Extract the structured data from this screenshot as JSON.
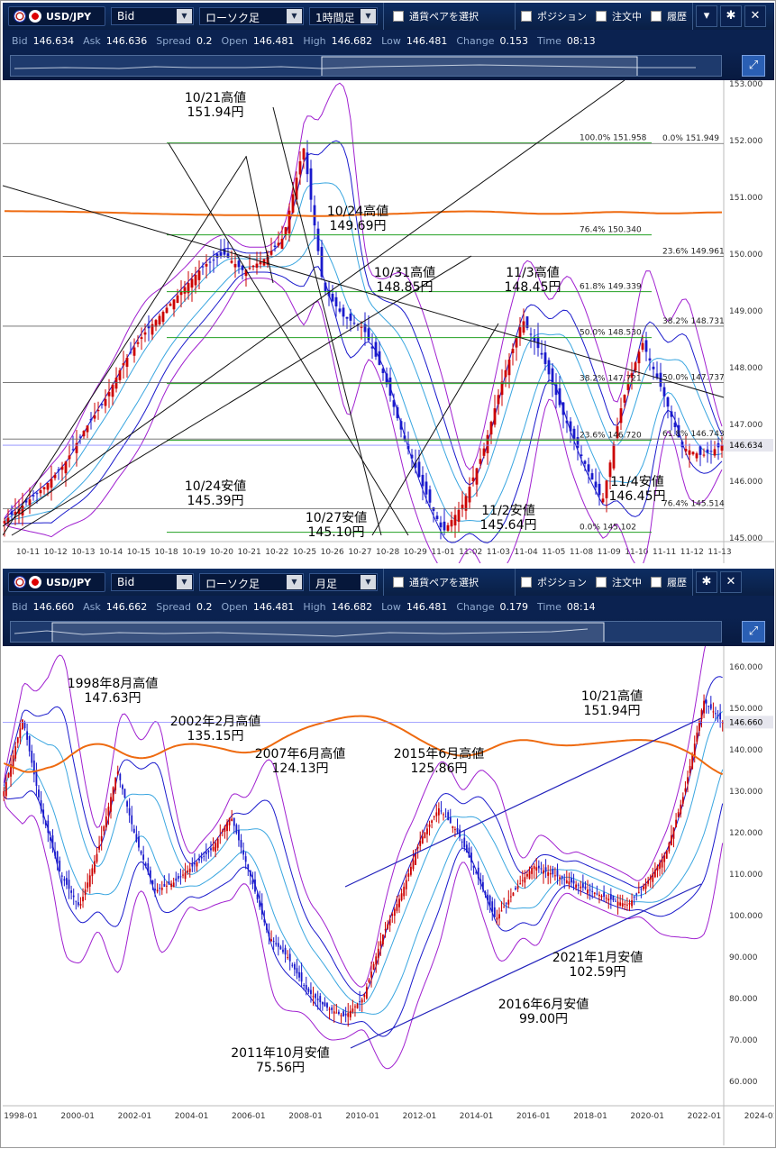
{
  "panels": [
    {
      "pair": "USD/JPY",
      "price_type": "Bid",
      "chart_type": "ローソク足",
      "period": "1時間足",
      "select_pair": "通貨ペアを選択",
      "toggles": [
        "ポジション",
        "注文中",
        "履歴"
      ],
      "quotes": [
        {
          "k": "Bid",
          "v": "146.634"
        },
        {
          "k": "Ask",
          "v": "146.636"
        },
        {
          "k": "Spread",
          "v": "0.2"
        },
        {
          "k": "Open",
          "v": "146.481"
        },
        {
          "k": "High",
          "v": "146.682"
        },
        {
          "k": "Low",
          "v": "146.481"
        },
        {
          "k": "Change",
          "v": "0.153"
        },
        {
          "k": "Time",
          "v": "08:13"
        }
      ]
    },
    {
      "pair": "USD/JPY",
      "price_type": "Bid",
      "chart_type": "ローソク足",
      "period": "月足",
      "select_pair": "通貨ペアを選択",
      "toggles": [
        "ポジション",
        "注文中",
        "履歴"
      ],
      "quotes": [
        {
          "k": "Bid",
          "v": "146.660"
        },
        {
          "k": "Ask",
          "v": "146.662"
        },
        {
          "k": "Spread",
          "v": "0.2"
        },
        {
          "k": "Open",
          "v": "146.481"
        },
        {
          "k": "High",
          "v": "146.682"
        },
        {
          "k": "Low",
          "v": "146.481"
        },
        {
          "k": "Change",
          "v": "0.179"
        },
        {
          "k": "Time",
          "v": "08:14"
        }
      ]
    }
  ],
  "icons": [
    "usd-flag-icon",
    "jpy-flag-icon",
    "dropdown-arrow-icon",
    "menu-icon",
    "gear-icon",
    "close-icon",
    "zoom-icon"
  ],
  "colors": {
    "toolbar": "#0d2d63",
    "candle_up": "#cc0000",
    "candle_down": "#1a1acc",
    "bb_outer": "#a020d0",
    "bb_inner": "#1a1acc",
    "ma_mid": "#ee6a10",
    "fib_green": "#22a022",
    "price_line": "#8888ff"
  },
  "chart_data": [
    {
      "type": "candlestick",
      "timeframe": "1時間足",
      "ylim": [
        145.0,
        153.0
      ],
      "y_ticks": [
        "153.000",
        "152.000",
        "151.000",
        "150.000",
        "149.000",
        "148.000",
        "147.000",
        "146.000",
        "145.000"
      ],
      "x_ticks": [
        "10-11",
        "10-12",
        "10-13",
        "10-14",
        "10-15",
        "10-18",
        "10-19",
        "10-20",
        "10-21",
        "10-22",
        "10-25",
        "10-26",
        "10-27",
        "10-28",
        "10-29",
        "11-01",
        "11-02",
        "11-03",
        "11-04",
        "11-05",
        "11-08",
        "11-09",
        "11-10",
        "11-11",
        "11-12",
        "11-13"
      ],
      "current_price": "146.634",
      "price_path": [
        145.3,
        145.6,
        145.9,
        146.3,
        146.9,
        147.4,
        148.1,
        148.6,
        149.0,
        149.4,
        149.8,
        150.0,
        149.7,
        149.9,
        150.3,
        151.9,
        149.4,
        148.9,
        148.7,
        147.9,
        146.8,
        145.9,
        145.1,
        145.6,
        146.5,
        147.8,
        148.85,
        148.2,
        147.2,
        146.4,
        145.64,
        147.4,
        148.45,
        147.6,
        146.6,
        146.45,
        146.63
      ],
      "fib_levels": [
        {
          "pct": "100.0%",
          "value": "151.958"
        },
        {
          "pct": "76.4%",
          "value": "150.340"
        },
        {
          "pct": "61.8%",
          "value": "149.339"
        },
        {
          "pct": "50.0%",
          "value": "148.530"
        },
        {
          "pct": "38.2%",
          "value": "147.721"
        },
        {
          "pct": "23.6%",
          "value": "146.720"
        },
        {
          "pct": "0.0%",
          "value": "145.102"
        }
      ],
      "fib_levels_2": [
        {
          "pct": "0.0%",
          "value": "151.949"
        },
        {
          "pct": "23.6%",
          "value": "149.961"
        },
        {
          "pct": "38.2%",
          "value": "148.731"
        },
        {
          "pct": "50.0%",
          "value": "147.737"
        },
        {
          "pct": "61.8%",
          "value": "146.743"
        },
        {
          "pct": "76.4%",
          "value": "145.514"
        }
      ],
      "annotations": [
        {
          "lines": [
            "10/21高値",
            "151.94円"
          ]
        },
        {
          "lines": [
            "10/24高値",
            "149.69円"
          ]
        },
        {
          "lines": [
            "10/31高値",
            "148.85円"
          ]
        },
        {
          "lines": [
            "11/3高値",
            "148.45円"
          ]
        },
        {
          "lines": [
            "10/24安値",
            "145.39円"
          ]
        },
        {
          "lines": [
            "10/27安値",
            "145.10円"
          ]
        },
        {
          "lines": [
            "11/2安値",
            "145.64円"
          ]
        },
        {
          "lines": [
            "11/4安値",
            "146.45円"
          ]
        }
      ]
    },
    {
      "type": "candlestick",
      "timeframe": "月足",
      "ylim": [
        55,
        165
      ],
      "y_ticks": [
        "160.000",
        "150.000",
        "140.000",
        "130.000",
        "120.000",
        "110.000",
        "100.000",
        "90.000",
        "80.000",
        "70.000",
        "60.000"
      ],
      "x_ticks": [
        "1998-01",
        "2000-01",
        "2002-01",
        "2004-01",
        "2006-01",
        "2008-01",
        "2010-01",
        "2012-01",
        "2014-01",
        "2016-01",
        "2018-01",
        "2020-01",
        "2022-01",
        "2024-01"
      ],
      "current_price": "146.660",
      "price_path": [
        130,
        147.6,
        125,
        110,
        102,
        116,
        135.2,
        118,
        106,
        108,
        112,
        116,
        124.1,
        110,
        95,
        90,
        82,
        78,
        75.6,
        80,
        95,
        105,
        118,
        125.9,
        120,
        110,
        99,
        106,
        112,
        110,
        108,
        106,
        104,
        102.6,
        108,
        115,
        130,
        151.9,
        146.7
      ],
      "annotations": [
        {
          "lines": [
            "1998年8月高値",
            "147.63円"
          ]
        },
        {
          "lines": [
            "2002年2月高値",
            "135.15円"
          ]
        },
        {
          "lines": [
            "2007年6月高値",
            "124.13円"
          ]
        },
        {
          "lines": [
            "2015年6月高値",
            "125.86円"
          ]
        },
        {
          "lines": [
            "10/21高値",
            "151.94円"
          ]
        },
        {
          "lines": [
            "2011年10月安値",
            "75.56円"
          ]
        },
        {
          "lines": [
            "2016年6月安値",
            "99.00円"
          ]
        },
        {
          "lines": [
            "2021年1月安値",
            "102.59円"
          ]
        }
      ]
    }
  ]
}
